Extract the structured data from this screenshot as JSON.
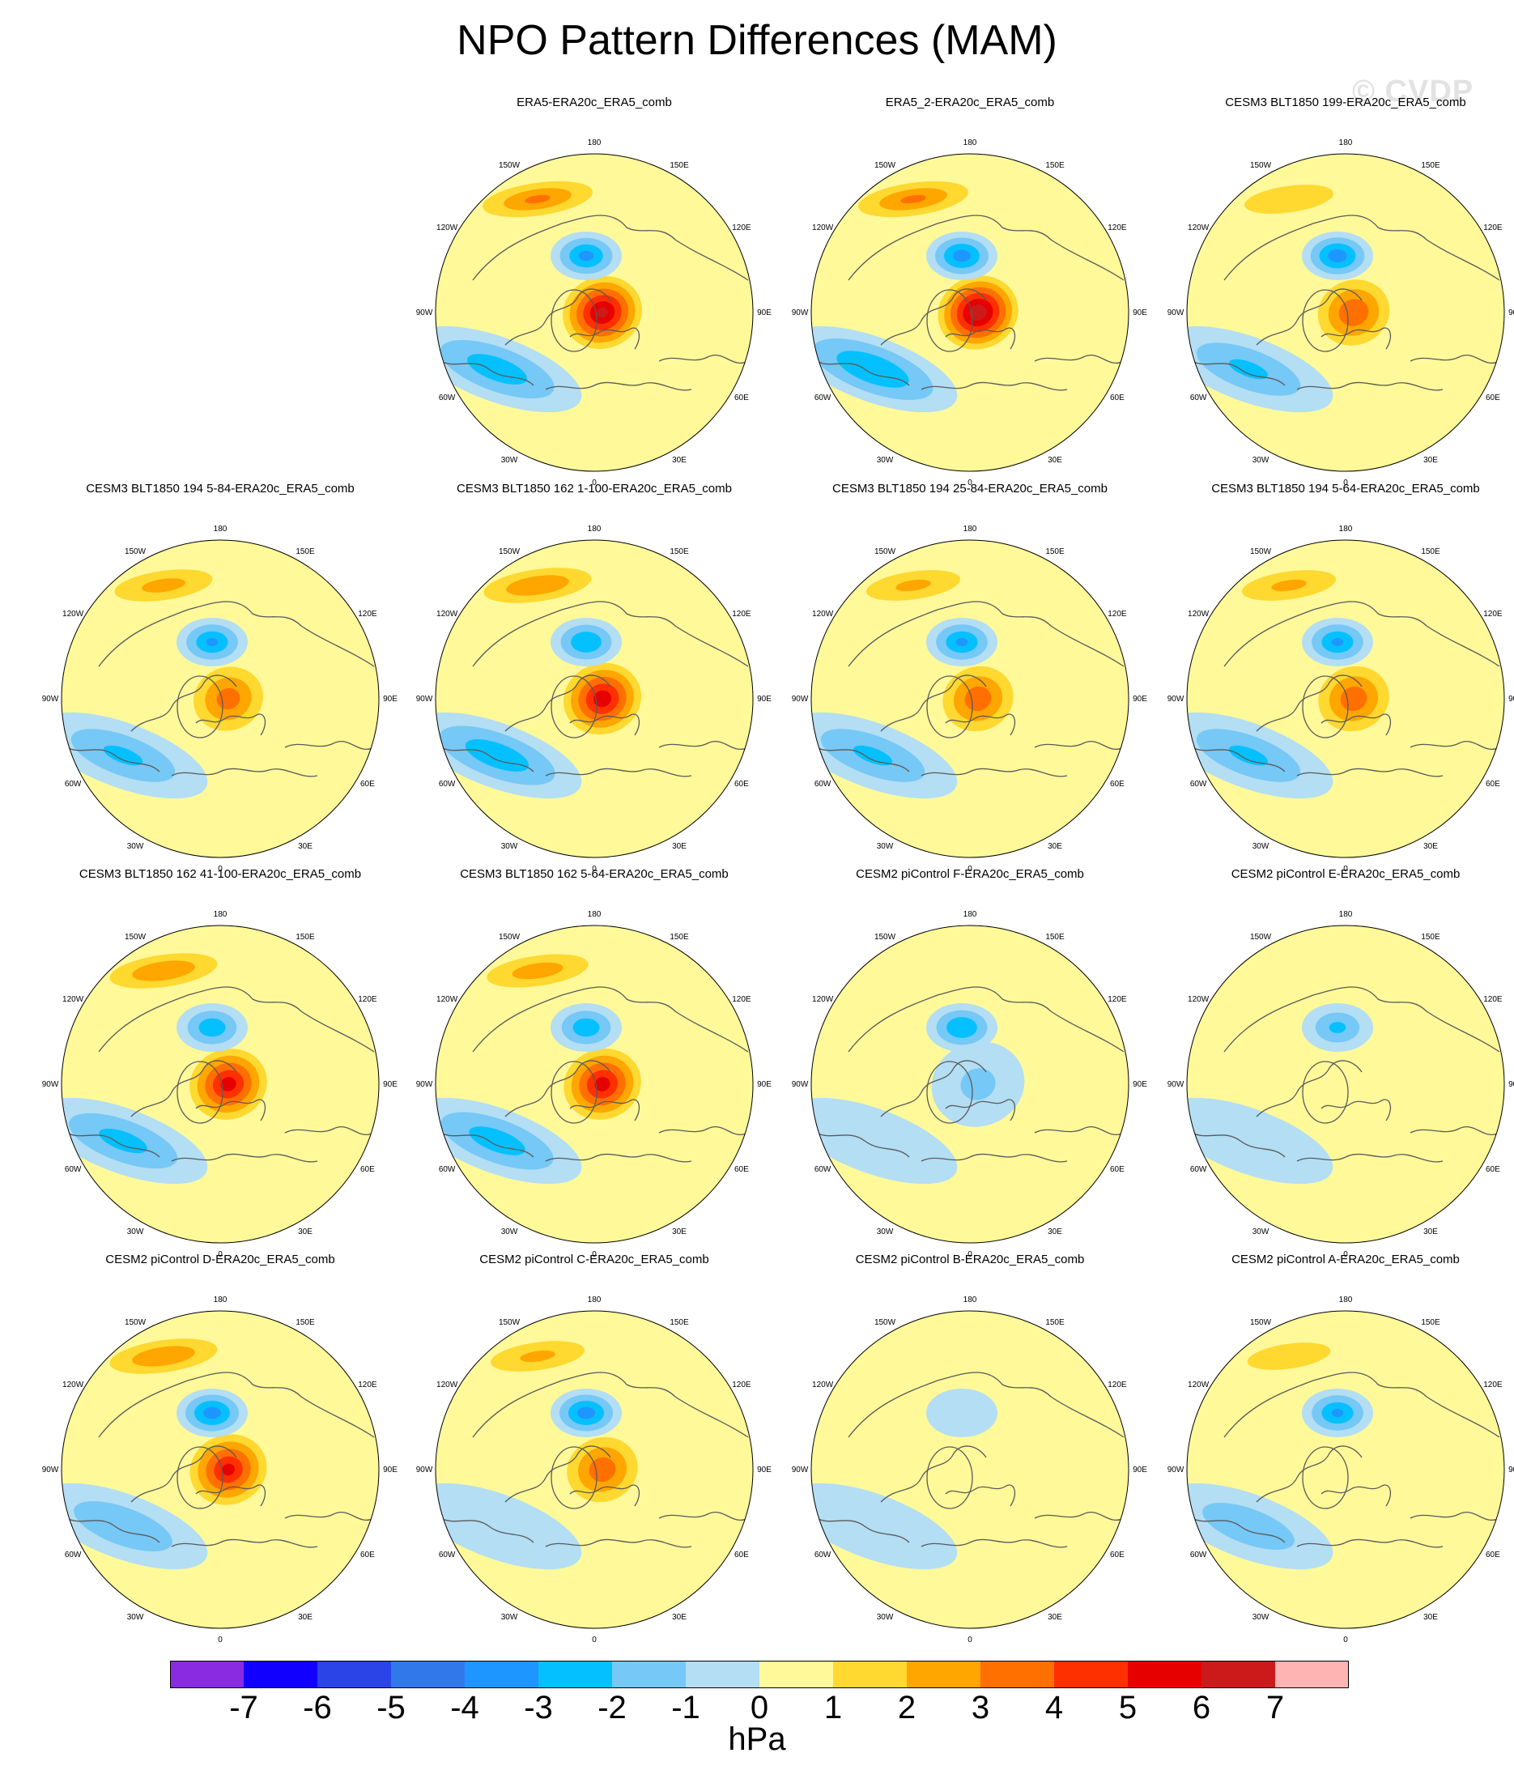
{
  "title": "NPO Pattern Differences (MAM)",
  "watermark": "© CVDP",
  "lon_labels": [
    "180",
    "150E",
    "120E",
    "90E",
    "60E",
    "30E",
    "0",
    "30W",
    "60W",
    "90W",
    "120W",
    "150W"
  ],
  "panels": [
    {
      "title": "ERA5-ERA20c_ERA5_comb",
      "row": 0,
      "col": 1,
      "npo": [
        6.2,
        -3.2,
        -2.5,
        3.0
      ],
      "pos": [
        2,
        12
      ]
    },
    {
      "title": "ERA5_2-ERA20c_ERA5_comb",
      "row": 0,
      "col": 2,
      "npo": [
        6.8,
        -3.4,
        -2.9,
        3.0
      ],
      "pos": [
        2,
        12
      ]
    },
    {
      "title": "CESM3 BLT1850 199-ERA20c_ERA5_comb",
      "row": 0,
      "col": 3,
      "npo": [
        3.8,
        -3.5,
        -2.0,
        1.8
      ],
      "pos": [
        2,
        12
      ]
    },
    {
      "title": "CESM3 BLT1850 194 5-84-ERA20c_ERA5_comb",
      "row": 1,
      "col": 0,
      "npo": [
        3.4,
        -3.0,
        -2.0,
        2.2
      ],
      "pos": [
        2,
        12
      ]
    },
    {
      "title": "CESM3 BLT1850 162 1-100-ERA20c_ERA5_comb",
      "row": 1,
      "col": 1,
      "npo": [
        5.6,
        -2.9,
        -2.6,
        2.8
      ],
      "pos": [
        2,
        12
      ]
    },
    {
      "title": "CESM3 BLT1850 194 25-84-ERA20c_ERA5_comb",
      "row": 1,
      "col": 2,
      "npo": [
        3.6,
        -3.0,
        -2.0,
        2.0
      ],
      "pos": [
        2,
        12
      ]
    },
    {
      "title": "CESM3 BLT1850 194 5-64-ERA20c_ERA5_comb",
      "row": 1,
      "col": 3,
      "npo": [
        3.6,
        -3.0,
        -2.0,
        2.0
      ],
      "pos": [
        2,
        12
      ]
    },
    {
      "title": "CESM3 BLT1850 162 41-100-ERA20c_ERA5_comb",
      "row": 2,
      "col": 0,
      "npo": [
        5.4,
        -2.6,
        -2.2,
        2.8
      ],
      "pos": [
        2,
        12
      ]
    },
    {
      "title": "CESM3 BLT1850 162 5-64-ERA20c_ERA5_comb",
      "row": 2,
      "col": 1,
      "npo": [
        5.4,
        -2.6,
        -2.4,
        2.4
      ],
      "pos": [
        2,
        12
      ]
    },
    {
      "title": "CESM2 piControl F-ERA20c_ERA5_comb",
      "row": 2,
      "col": 2,
      "npo": [
        -1.0,
        -2.9,
        -0.8,
        0.2
      ],
      "pos": [
        2,
        12
      ]
    },
    {
      "title": "CESM2 piControl E-ERA20c_ERA5_comb",
      "row": 2,
      "col": 3,
      "npo": [
        0.3,
        -2.0,
        -0.8,
        0.2
      ],
      "pos": [
        2,
        12
      ]
    },
    {
      "title": "CESM2 piControl D-ERA20c_ERA5_comb",
      "row": 3,
      "col": 0,
      "npo": [
        5.2,
        -3.4,
        -1.8,
        2.8
      ],
      "pos": [
        2,
        12
      ]
    },
    {
      "title": "CESM2 piControl C-ERA20c_ERA5_comb",
      "row": 3,
      "col": 1,
      "npo": [
        3.6,
        -3.4,
        -0.9,
        2.0
      ],
      "pos": [
        2,
        12
      ]
    },
    {
      "title": "CESM2 piControl B-ERA20c_ERA5_comb",
      "row": 3,
      "col": 2,
      "npo": [
        -0.4,
        -0.6,
        -0.6,
        0.3
      ],
      "pos": [
        2,
        12
      ]
    },
    {
      "title": "CESM2 piControl A-ERA20c_ERA5_comb",
      "row": 3,
      "col": 3,
      "npo": [
        0.2,
        -3.0,
        -1.6,
        1.6
      ],
      "pos": [
        2,
        12
      ]
    }
  ],
  "colorbar": {
    "colors": [
      "#8a2be2",
      "#1200ff",
      "#2a44e8",
      "#3179ea",
      "#1e96ff",
      "#05c0ff",
      "#76c8f6",
      "#b3def3",
      "#fff99a",
      "#ffd830",
      "#ffa600",
      "#ff7000",
      "#ff3000",
      "#e60000",
      "#cc1a1a",
      "#ffb4b4"
    ],
    "ticks": [
      "-7",
      "-6",
      "-5",
      "-4",
      "-3",
      "-2",
      "-1",
      "0",
      "1",
      "2",
      "3",
      "4",
      "5",
      "6",
      "7"
    ],
    "units": "hPa"
  }
}
